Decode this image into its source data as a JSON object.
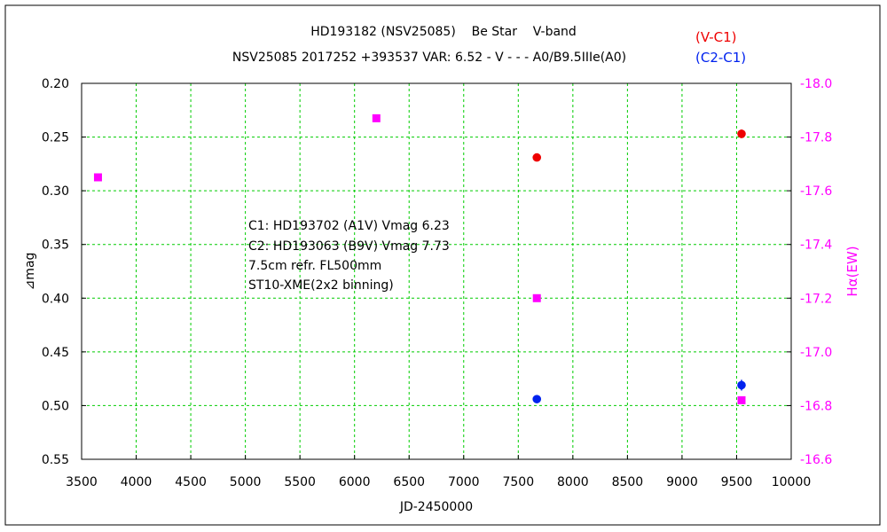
{
  "chart_data": {
    "type": "scatter",
    "title": "HD193182 (NSV25085)    Be Star    V-band",
    "subtitle": "NSV25085 2017252 +393537 VAR: 6.52 - V - - - A0/B9.5IIIe(A0)",
    "xlabel": "JD-2450000",
    "ylabel_left": "⊿mag",
    "ylabel_right": "Hα(EW)",
    "xlim": [
      3500,
      10000
    ],
    "ylim_left": [
      0.55,
      0.2
    ],
    "ylim_right": [
      -16.6,
      -18.0
    ],
    "x_ticks": [
      "3500",
      "4000",
      "4500",
      "5000",
      "5500",
      "6000",
      "6500",
      "7000",
      "7500",
      "8000",
      "8500",
      "9000",
      "9500",
      "10000"
    ],
    "y_left_ticks": [
      "0.20",
      "0.25",
      "0.30",
      "0.35",
      "0.40",
      "0.45",
      "0.50",
      "0.55"
    ],
    "y_right_ticks": [
      "-18.0",
      "-17.8",
      "-17.6",
      "-17.4",
      "-17.2",
      "-17.0",
      "-16.8",
      "-16.6"
    ],
    "grid": true,
    "legend_position": "top-right",
    "series": [
      {
        "name": "(V-C1)",
        "axis": "left",
        "marker": "circle",
        "color": "#ee0000",
        "points": [
          {
            "x": 7670,
            "y": 0.269,
            "err": 0.0
          },
          {
            "x": 9545,
            "y": 0.247,
            "err": 0.004
          }
        ]
      },
      {
        "name": "(C2-C1)",
        "axis": "left",
        "marker": "circle",
        "color": "#0022ee",
        "points": [
          {
            "x": 7670,
            "y": 0.494,
            "err": 0.0
          },
          {
            "x": 9545,
            "y": 0.481,
            "err": 0.005
          }
        ]
      },
      {
        "name": "",
        "axis": "right",
        "marker": "square",
        "color": "#ff00ff",
        "points": [
          {
            "x": 3650,
            "y": -17.65
          },
          {
            "x": 6200,
            "y": -17.87
          },
          {
            "x": 7670,
            "y": -17.2
          },
          {
            "x": 9545,
            "y": -16.82
          }
        ]
      }
    ],
    "annotation": [
      "C1: HD193702 (A1V) Vmag 6.23",
      "C2: HD193063 (B9V) Vmag 7.73",
      "7.5cm refr. FL500mm",
      "ST10-XME(2x2 binning)"
    ]
  }
}
